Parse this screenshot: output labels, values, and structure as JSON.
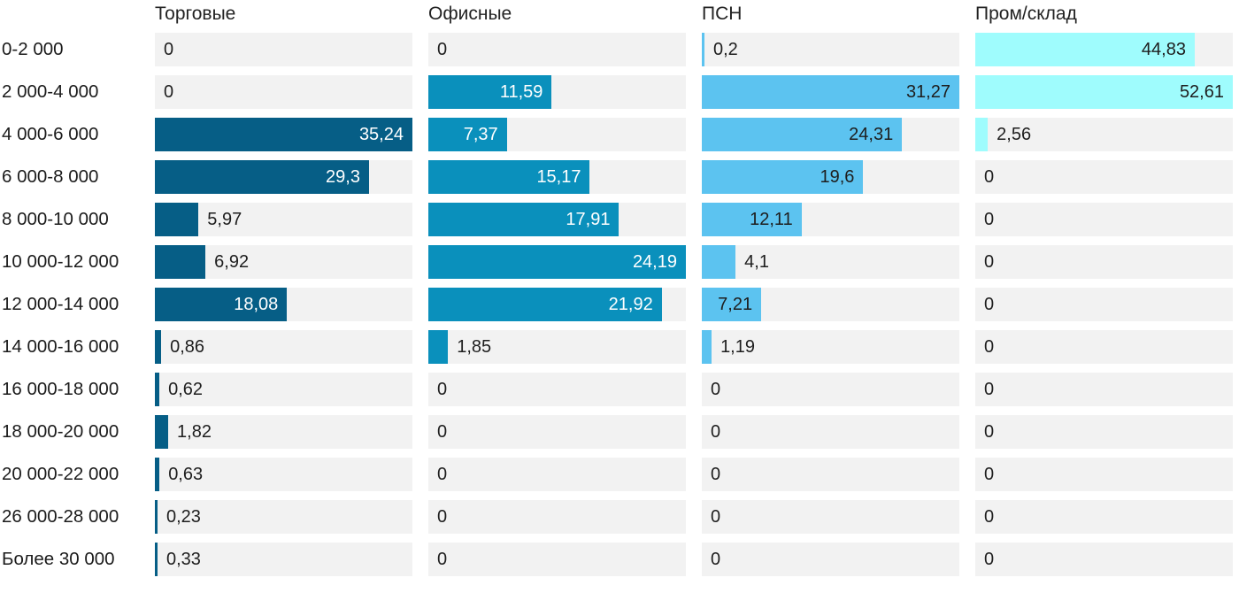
{
  "chart_data": {
    "type": "bar",
    "orientation": "horizontal",
    "scaling": "each column is scaled independently to its own maximum value (max bar = full track width)",
    "legend_position": "column headers on top",
    "grid": false,
    "track_color": "#f2f2f2",
    "outside_label_color": "#1e1e1e",
    "header_color": "#222222",
    "row_label_color": "#1b1b1b",
    "categories": [
      "0-2 000",
      "2 000-4 000",
      "4 000-6 000",
      "6 000-8 000",
      "8 000-10 000",
      "10 000-12 000",
      "12 000-14 000",
      "14 000-16 000",
      "16 000-18 000",
      "18 000-20 000",
      "20 000-22 000",
      "26 000-28 000",
      "Более 30 000"
    ],
    "series": [
      {
        "name": "Торговые",
        "color": "#065e86",
        "inside_label_color": "#ffffff",
        "values": [
          0,
          0,
          35.24,
          29.3,
          5.97,
          6.92,
          18.08,
          0.86,
          0.62,
          1.82,
          0.63,
          0.23,
          0.33
        ],
        "labels": [
          "0",
          "0",
          "35,24",
          "29,3",
          "5,97",
          "6,92",
          "18,08",
          "0,86",
          "0,62",
          "1,82",
          "0,63",
          "0,23",
          "0,33"
        ]
      },
      {
        "name": "Офисные",
        "color": "#0a90bc",
        "inside_label_color": "#ffffff",
        "values": [
          0,
          11.59,
          7.37,
          15.17,
          17.91,
          24.19,
          21.92,
          1.85,
          0,
          0,
          0,
          0,
          0
        ],
        "labels": [
          "0",
          "11,59",
          "7,37",
          "15,17",
          "17,91",
          "24,19",
          "21,92",
          "1,85",
          "0",
          "0",
          "0",
          "0",
          "0"
        ]
      },
      {
        "name": "ПСН",
        "color": "#5cc3f0",
        "inside_label_color": "#1e1e1e",
        "values": [
          0.2,
          31.27,
          24.31,
          19.6,
          12.11,
          4.1,
          7.21,
          1.19,
          0,
          0,
          0,
          0,
          0
        ],
        "labels": [
          "0,2",
          "31,27",
          "24,31",
          "19,6",
          "12,11",
          "4,1",
          "7,21",
          "1,19",
          "0",
          "0",
          "0",
          "0",
          "0"
        ]
      },
      {
        "name": "Пром/склад",
        "color": "#9ffcfd",
        "inside_label_color": "#1e1e1e",
        "values": [
          44.83,
          52.61,
          2.56,
          0,
          0,
          0,
          0,
          0,
          0,
          0,
          0,
          0,
          0
        ],
        "labels": [
          "44,83",
          "52,61",
          "2,56",
          "0",
          "0",
          "0",
          "0",
          "0",
          "0",
          "0",
          "0",
          "0",
          "0"
        ]
      }
    ]
  }
}
